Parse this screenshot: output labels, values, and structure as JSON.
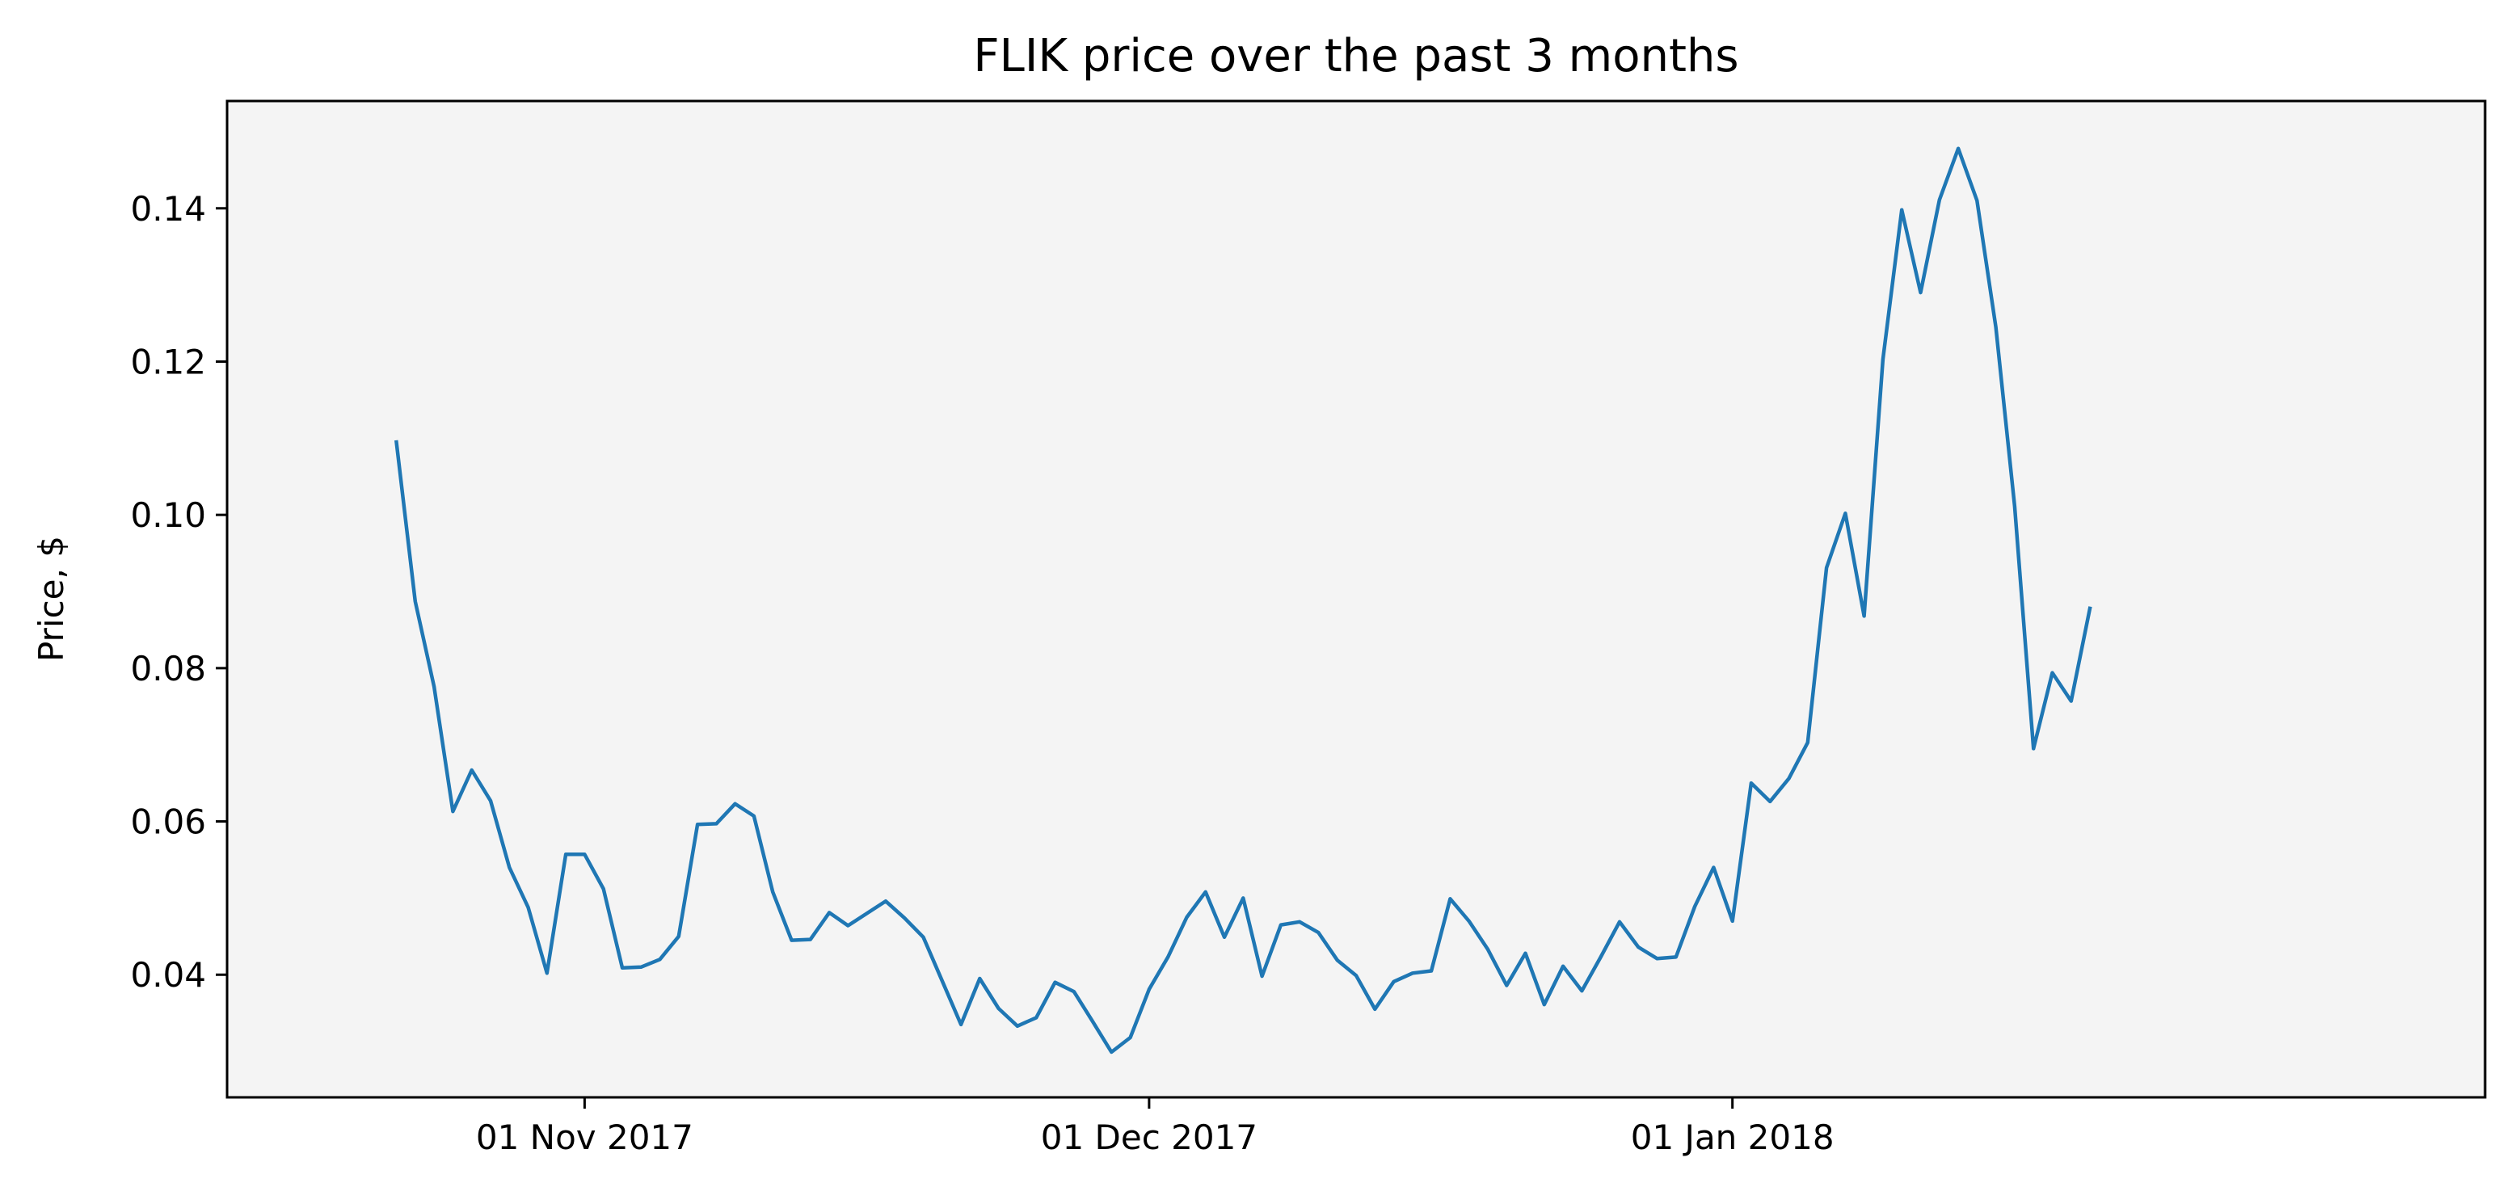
{
  "chart_data": {
    "type": "line",
    "title": "FLIK price over the past 3 months",
    "xlabel": "",
    "ylabel": "Price, $",
    "x_tick_labels": [
      {
        "date": "2017-11-01",
        "label": "01 Nov 2017"
      },
      {
        "date": "2017-12-01",
        "label": "01 Dec 2017"
      },
      {
        "date": "2018-01-01",
        "label": "01 Jan 2018"
      }
    ],
    "y_ticks": [
      0.04,
      0.06,
      0.08,
      0.1,
      0.12,
      0.14
    ],
    "y_tick_labels": [
      "0.04",
      "0.06",
      "0.08",
      "0.10",
      "0.12",
      "0.14"
    ],
    "xlim": [
      "2017-10-13",
      "2018-02-10"
    ],
    "ylim": [
      0.024,
      0.154
    ],
    "grid": false,
    "plot_background": "#f4f4f4",
    "series": [
      {
        "color": "#1f77b4",
        "points": [
          [
            "2017-10-22",
            0.1095
          ],
          [
            "2017-10-23",
            0.0887
          ],
          [
            "2017-10-24",
            0.0776
          ],
          [
            "2017-10-25",
            0.0613
          ],
          [
            "2017-10-26",
            0.0667
          ],
          [
            "2017-10-27",
            0.0627
          ],
          [
            "2017-10-28",
            0.054
          ],
          [
            "2017-10-29",
            0.0488
          ],
          [
            "2017-10-30",
            0.0402
          ],
          [
            "2017-10-31",
            0.0557
          ],
          [
            "2017-11-01",
            0.0557
          ],
          [
            "2017-11-02",
            0.0512
          ],
          [
            "2017-11-03",
            0.0409
          ],
          [
            "2017-11-04",
            0.041
          ],
          [
            "2017-11-05",
            0.042
          ],
          [
            "2017-11-06",
            0.045
          ],
          [
            "2017-11-07",
            0.0596
          ],
          [
            "2017-11-08",
            0.0597
          ],
          [
            "2017-11-09",
            0.0623
          ],
          [
            "2017-11-10",
            0.0607
          ],
          [
            "2017-11-11",
            0.0508
          ],
          [
            "2017-11-12",
            0.0445
          ],
          [
            "2017-11-13",
            0.0446
          ],
          [
            "2017-11-14",
            0.0481
          ],
          [
            "2017-11-15",
            0.0464
          ],
          [
            "2017-11-16",
            0.048
          ],
          [
            "2017-11-17",
            0.0496
          ],
          [
            "2017-11-18",
            0.0474
          ],
          [
            "2017-11-19",
            0.0449
          ],
          [
            "2017-11-20",
            0.0392
          ],
          [
            "2017-11-21",
            0.0335
          ],
          [
            "2017-11-22",
            0.0395
          ],
          [
            "2017-11-23",
            0.0356
          ],
          [
            "2017-11-24",
            0.0333
          ],
          [
            "2017-11-25",
            0.0344
          ],
          [
            "2017-11-26",
            0.039
          ],
          [
            "2017-11-27",
            0.0378
          ],
          [
            "2017-11-28",
            0.0339
          ],
          [
            "2017-11-29",
            0.0299
          ],
          [
            "2017-11-30",
            0.0318
          ],
          [
            "2017-12-01",
            0.0381
          ],
          [
            "2017-12-02",
            0.0423
          ],
          [
            "2017-12-03",
            0.0475
          ],
          [
            "2017-12-04",
            0.0508
          ],
          [
            "2017-12-05",
            0.0449
          ],
          [
            "2017-12-06",
            0.05
          ],
          [
            "2017-12-07",
            0.0398
          ],
          [
            "2017-12-08",
            0.0465
          ],
          [
            "2017-12-09",
            0.0469
          ],
          [
            "2017-12-10",
            0.0455
          ],
          [
            "2017-12-11",
            0.0419
          ],
          [
            "2017-12-12",
            0.0399
          ],
          [
            "2017-12-13",
            0.0355
          ],
          [
            "2017-12-14",
            0.0391
          ],
          [
            "2017-12-15",
            0.0402
          ],
          [
            "2017-12-16",
            0.0405
          ],
          [
            "2017-12-17",
            0.0499
          ],
          [
            "2017-12-18",
            0.047
          ],
          [
            "2017-12-19",
            0.0433
          ],
          [
            "2017-12-20",
            0.0386
          ],
          [
            "2017-12-21",
            0.0428
          ],
          [
            "2017-12-22",
            0.0361
          ],
          [
            "2017-12-23",
            0.0411
          ],
          [
            "2017-12-24",
            0.0379
          ],
          [
            "2017-12-25",
            0.0423
          ],
          [
            "2017-12-26",
            0.0469
          ],
          [
            "2017-12-27",
            0.0436
          ],
          [
            "2017-12-28",
            0.0421
          ],
          [
            "2017-12-29",
            0.0423
          ],
          [
            "2017-12-30",
            0.0489
          ],
          [
            "2017-12-31",
            0.054
          ],
          [
            "2018-01-01",
            0.047
          ],
          [
            "2018-01-02",
            0.065
          ],
          [
            "2018-01-03",
            0.0626
          ],
          [
            "2018-01-04",
            0.0656
          ],
          [
            "2018-01-05",
            0.0703
          ],
          [
            "2018-01-06",
            0.0931
          ],
          [
            "2018-01-07",
            0.1002
          ],
          [
            "2018-01-08",
            0.0868
          ],
          [
            "2018-01-09",
            0.1203
          ],
          [
            "2018-01-10",
            0.1398
          ],
          [
            "2018-01-11",
            0.129
          ],
          [
            "2018-01-12",
            0.1411
          ],
          [
            "2018-01-13",
            0.1478
          ],
          [
            "2018-01-14",
            0.141
          ],
          [
            "2018-01-15",
            0.1245
          ],
          [
            "2018-01-16",
            0.1011
          ],
          [
            "2018-01-17",
            0.0695
          ],
          [
            "2018-01-18",
            0.0794
          ],
          [
            "2018-01-19",
            0.0757
          ],
          [
            "2018-01-20",
            0.0878
          ]
        ]
      }
    ]
  }
}
